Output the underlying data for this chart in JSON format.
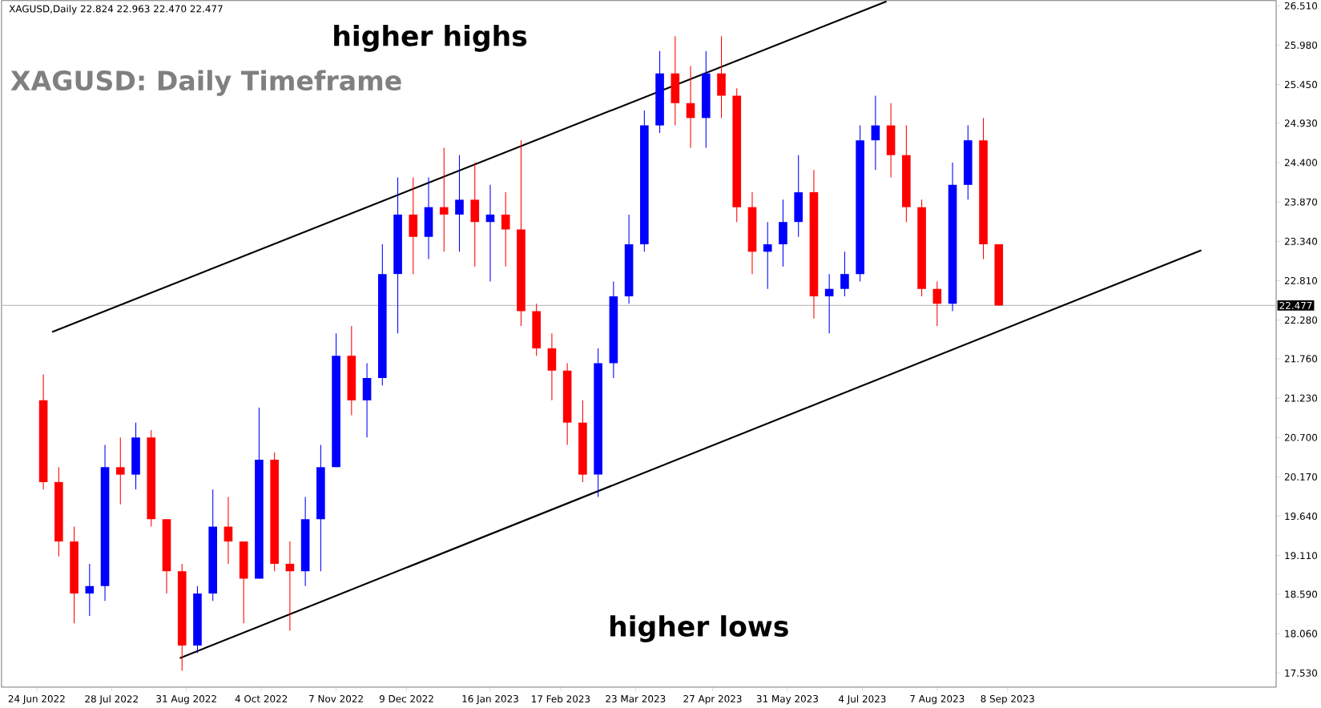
{
  "chart_data": {
    "type": "candlestick",
    "title": "XAGUSD: Daily Timeframe",
    "subtitle": "XAGUSD,Daily  22.824 22.963 22.470 22.477",
    "x": [
      "2022-06-27",
      "2022-07-04",
      "2022-07-11",
      "2022-07-18",
      "2022-07-25",
      "2022-08-01",
      "2022-08-08",
      "2022-08-15",
      "2022-08-22",
      "2022-08-29",
      "2022-09-05",
      "2022-09-12",
      "2022-09-19",
      "2022-09-26",
      "2022-10-03",
      "2022-10-10",
      "2022-10-17",
      "2022-10-24",
      "2022-10-31",
      "2022-11-07",
      "2022-11-14",
      "2022-11-21",
      "2022-11-28",
      "2022-12-05",
      "2022-12-12",
      "2022-12-19",
      "2022-12-26",
      "2023-01-02",
      "2023-01-09",
      "2023-01-16",
      "2023-01-23",
      "2023-01-30",
      "2023-02-06",
      "2023-02-13",
      "2023-02-20",
      "2023-02-27",
      "2023-03-06",
      "2023-03-13",
      "2023-03-20",
      "2023-03-27",
      "2023-04-03",
      "2023-04-10",
      "2023-04-17",
      "2023-04-24",
      "2023-05-01",
      "2023-05-08",
      "2023-05-15",
      "2023-05-22",
      "2023-05-29",
      "2023-06-05",
      "2023-06-12",
      "2023-06-19",
      "2023-06-26",
      "2023-07-03",
      "2023-07-10",
      "2023-07-17",
      "2023-07-24",
      "2023-07-31",
      "2023-08-07",
      "2023-08-14",
      "2023-08-21",
      "2023-08-28",
      "2023-09-04"
    ],
    "ohlc": [
      [
        21.2,
        21.55,
        20.0,
        20.1
      ],
      [
        20.1,
        20.3,
        19.1,
        19.3
      ],
      [
        19.3,
        19.5,
        18.2,
        18.6
      ],
      [
        18.6,
        19.0,
        18.3,
        18.7
      ],
      [
        18.7,
        20.6,
        18.5,
        20.3
      ],
      [
        20.3,
        20.7,
        19.8,
        20.2
      ],
      [
        20.2,
        20.9,
        20.0,
        20.7
      ],
      [
        20.7,
        20.8,
        19.5,
        19.6
      ],
      [
        19.6,
        19.6,
        18.6,
        18.9
      ],
      [
        18.9,
        19.0,
        17.56,
        17.9
      ],
      [
        17.9,
        18.7,
        17.8,
        18.6
      ],
      [
        18.6,
        20.0,
        18.5,
        19.5
      ],
      [
        19.5,
        19.9,
        19.0,
        19.3
      ],
      [
        19.3,
        19.3,
        18.2,
        18.8
      ],
      [
        18.8,
        21.1,
        18.8,
        20.4
      ],
      [
        20.4,
        20.5,
        18.9,
        19.0
      ],
      [
        19.0,
        19.3,
        18.1,
        18.9
      ],
      [
        18.9,
        19.9,
        18.7,
        19.6
      ],
      [
        19.6,
        20.6,
        18.9,
        20.3
      ],
      [
        20.3,
        22.1,
        20.3,
        21.8
      ],
      [
        21.8,
        22.2,
        21.0,
        21.2
      ],
      [
        21.2,
        21.7,
        20.7,
        21.5
      ],
      [
        21.5,
        23.3,
        21.4,
        22.9
      ],
      [
        22.9,
        24.2,
        22.1,
        23.7
      ],
      [
        23.7,
        24.2,
        22.9,
        23.4
      ],
      [
        23.4,
        24.2,
        23.1,
        23.8
      ],
      [
        23.8,
        24.6,
        23.2,
        23.7
      ],
      [
        23.7,
        24.5,
        23.2,
        23.9
      ],
      [
        23.9,
        24.4,
        23.0,
        23.6
      ],
      [
        23.6,
        24.1,
        22.8,
        23.7
      ],
      [
        23.7,
        24.0,
        23.0,
        23.5
      ],
      [
        23.5,
        24.7,
        22.2,
        22.4
      ],
      [
        22.4,
        22.5,
        21.8,
        21.9
      ],
      [
        21.9,
        22.1,
        21.2,
        21.6
      ],
      [
        21.6,
        21.7,
        20.6,
        20.9
      ],
      [
        20.9,
        21.2,
        20.1,
        20.2
      ],
      [
        20.2,
        21.9,
        19.9,
        21.7
      ],
      [
        21.7,
        22.8,
        21.5,
        22.6
      ],
      [
        22.6,
        23.7,
        22.5,
        23.3
      ],
      [
        23.3,
        25.1,
        23.2,
        24.9
      ],
      [
        24.9,
        25.9,
        24.8,
        25.6
      ],
      [
        25.6,
        26.1,
        24.9,
        25.2
      ],
      [
        25.2,
        25.7,
        24.6,
        25.0
      ],
      [
        25.0,
        25.9,
        24.6,
        25.6
      ],
      [
        25.6,
        26.1,
        25.0,
        25.3
      ],
      [
        25.3,
        25.4,
        23.6,
        23.8
      ],
      [
        23.8,
        24.0,
        22.9,
        23.2
      ],
      [
        23.2,
        23.6,
        22.7,
        23.3
      ],
      [
        23.3,
        23.9,
        23.0,
        23.6
      ],
      [
        23.6,
        24.5,
        23.4,
        24.0
      ],
      [
        24.0,
        24.3,
        22.3,
        22.6
      ],
      [
        22.6,
        22.9,
        22.1,
        22.7
      ],
      [
        22.7,
        23.2,
        22.6,
        22.9
      ],
      [
        22.9,
        24.9,
        22.8,
        24.7
      ],
      [
        24.7,
        25.3,
        24.3,
        24.9
      ],
      [
        24.9,
        25.2,
        24.2,
        24.5
      ],
      [
        24.5,
        24.9,
        23.6,
        23.8
      ],
      [
        23.8,
        23.9,
        22.6,
        22.7
      ],
      [
        22.7,
        22.8,
        22.2,
        22.5
      ],
      [
        22.5,
        24.4,
        22.4,
        24.1
      ],
      [
        24.1,
        24.9,
        23.9,
        24.7
      ],
      [
        24.7,
        25.0,
        23.1,
        23.3
      ],
      [
        23.3,
        23.3,
        22.47,
        22.477
      ]
    ],
    "colors": [
      "#ff0000",
      "#ff0000",
      "#ff0000",
      "#0000ff",
      "#0000ff",
      "#ff0000",
      "#0000ff",
      "#ff0000",
      "#ff0000",
      "#ff0000",
      "#0000ff",
      "#0000ff",
      "#ff0000",
      "#ff0000",
      "#0000ff",
      "#ff0000",
      "#ff0000",
      "#0000ff",
      "#0000ff",
      "#0000ff",
      "#ff0000",
      "#0000ff",
      "#0000ff",
      "#0000ff",
      "#ff0000",
      "#0000ff",
      "#ff0000",
      "#0000ff",
      "#ff0000",
      "#0000ff",
      "#ff0000",
      "#ff0000",
      "#ff0000",
      "#ff0000",
      "#ff0000",
      "#ff0000",
      "#0000ff",
      "#0000ff",
      "#0000ff",
      "#0000ff",
      "#0000ff",
      "#ff0000",
      "#ff0000",
      "#0000ff",
      "#ff0000",
      "#ff0000",
      "#ff0000",
      "#0000ff",
      "#0000ff",
      "#0000ff",
      "#ff0000",
      "#0000ff",
      "#0000ff",
      "#0000ff",
      "#0000ff",
      "#ff0000",
      "#ff0000",
      "#ff0000",
      "#ff0000",
      "#0000ff",
      "#0000ff",
      "#ff0000",
      "#ff0000"
    ],
    "series": [
      {
        "type": "line",
        "color": "#000000",
        "x": [
          "2022-07-01",
          "2023-07-15"
        ],
        "values": [
          22.12,
          26.57
        ]
      },
      {
        "type": "line",
        "color": "#000000",
        "x": [
          "2022-08-28",
          "2023-12-05"
        ],
        "values": [
          17.73,
          23.22
        ]
      }
    ],
    "xlim": [
      "2022-06-08",
      "2024-01-08"
    ],
    "ylim": [
      17.34,
      26.58
    ],
    "xticks": [
      {
        "value": "2022-06-24",
        "label": "24 Jun 2022"
      },
      {
        "value": "2022-07-28",
        "label": "28 Jul 2022"
      },
      {
        "value": "2022-08-31",
        "label": "31 Aug 2022"
      },
      {
        "value": "2022-10-04",
        "label": "4 Oct 2022"
      },
      {
        "value": "2022-11-07",
        "label": "7 Nov 2022"
      },
      {
        "value": "2022-12-09",
        "label": "9 Dec 2022"
      },
      {
        "value": "2023-01-16",
        "label": "16 Jan 2023"
      },
      {
        "value": "2023-02-17",
        "label": "17 Feb 2023"
      },
      {
        "value": "2023-03-23",
        "label": "23 Mar 2023"
      },
      {
        "value": "2023-04-27",
        "label": "27 Apr 2023"
      },
      {
        "value": "2023-05-31",
        "label": "31 May 2023"
      },
      {
        "value": "2023-07-04",
        "label": "4 Jul 2023"
      },
      {
        "value": "2023-08-07",
        "label": "7 Aug 2023"
      },
      {
        "value": "2023-09-08",
        "label": "8 Sep 2023"
      }
    ],
    "yticks": [
      {
        "value": 17.53,
        "label": "17.530"
      },
      {
        "value": 18.06,
        "label": "18.060"
      },
      {
        "value": 18.59,
        "label": "18.590"
      },
      {
        "value": 19.11,
        "label": "19.110"
      },
      {
        "value": 19.64,
        "label": "19.640"
      },
      {
        "value": 20.17,
        "label": "20.170"
      },
      {
        "value": 20.7,
        "label": "20.700"
      },
      {
        "value": 21.23,
        "label": "21.230"
      },
      {
        "value": 21.76,
        "label": "21.760"
      },
      {
        "value": 22.28,
        "label": "22.280"
      },
      {
        "value": 22.81,
        "label": "22.810"
      },
      {
        "value": 23.34,
        "label": "23.340"
      },
      {
        "value": 23.87,
        "label": "23.870"
      },
      {
        "value": 24.4,
        "label": "24.400"
      },
      {
        "value": 24.93,
        "label": "24.930"
      },
      {
        "value": 25.45,
        "label": "25.450"
      },
      {
        "value": 25.98,
        "label": "25.980"
      },
      {
        "value": 26.51,
        "label": "26.510"
      }
    ],
    "ref_lines": [
      {
        "axis": "y",
        "value": 22.477,
        "label": "22.477",
        "color": "#c0c0c0"
      }
    ],
    "annotations": [
      "higher highs",
      "higher lows"
    ]
  }
}
